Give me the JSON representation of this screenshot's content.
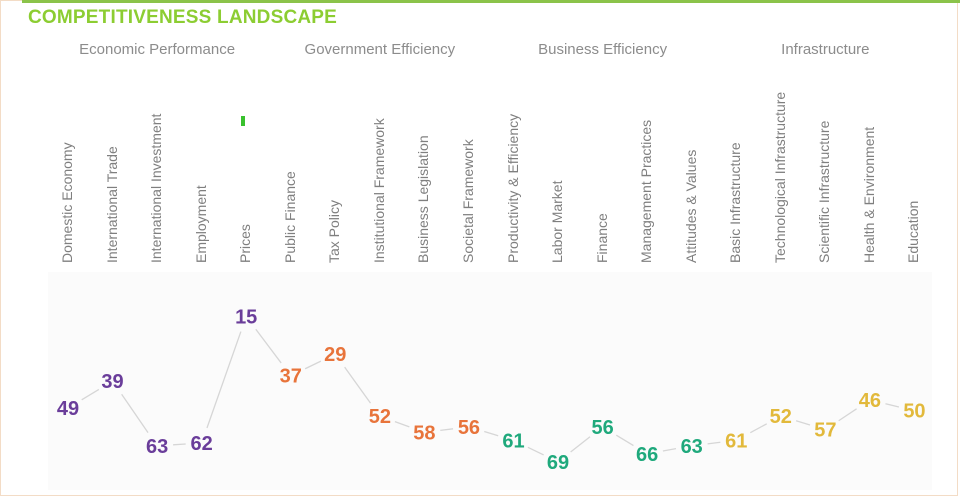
{
  "title": "COMPETITIVENESS LANDSCAPE",
  "colors": {
    "title": "#8ccd32",
    "Economic Performance": "#6a3d9a",
    "Government Efficiency": "#e8743b",
    "Business Efficiency": "#1fa97c",
    "Infrastructure": "#e2b93b",
    "connector": "#d6d6d6",
    "marker": "#39c12e"
  },
  "chart_data": {
    "type": "line",
    "title": "COMPETITIVENESS LANDSCAPE",
    "xlabel": "",
    "ylabel": "",
    "groups": [
      {
        "name": "Economic Performance",
        "categories": [
          "Domestic Economy",
          "International Trade",
          "International Investment",
          "Employment",
          "Prices"
        ]
      },
      {
        "name": "Government Efficiency",
        "categories": [
          "Public Finance",
          "Tax Policy",
          "Institutional Framework",
          "Business Legislation",
          "Societal Framework"
        ]
      },
      {
        "name": "Business Efficiency",
        "categories": [
          "Productivity & Efficiency",
          "Labor Market",
          "Finance",
          "Management Practices",
          "Attitudes & Values"
        ]
      },
      {
        "name": "Infrastructure",
        "categories": [
          "Basic Infrastructure",
          "Technological Infrastructure",
          "Scientific Infrastructure",
          "Health & Environment",
          "Education"
        ]
      }
    ],
    "categories": [
      "Domestic Economy",
      "International Trade",
      "International Investment",
      "Employment",
      "Prices",
      "Public Finance",
      "Tax Policy",
      "Institutional Framework",
      "Business Legislation",
      "Societal Framework",
      "Productivity & Efficiency",
      "Labor Market",
      "Finance",
      "Management Practices",
      "Attitudes & Values",
      "Basic Infrastructure",
      "Technological Infrastructure",
      "Scientific Infrastructure",
      "Health & Environment",
      "Education"
    ],
    "series": [
      {
        "values": [
          49,
          39,
          63,
          62,
          15,
          37,
          29,
          52,
          58,
          56,
          61,
          69,
          56,
          66,
          63,
          61,
          52,
          57,
          46,
          50
        ]
      }
    ],
    "y_axis_inverted": true,
    "ylim": [
      10,
      72
    ],
    "grid": false
  }
}
